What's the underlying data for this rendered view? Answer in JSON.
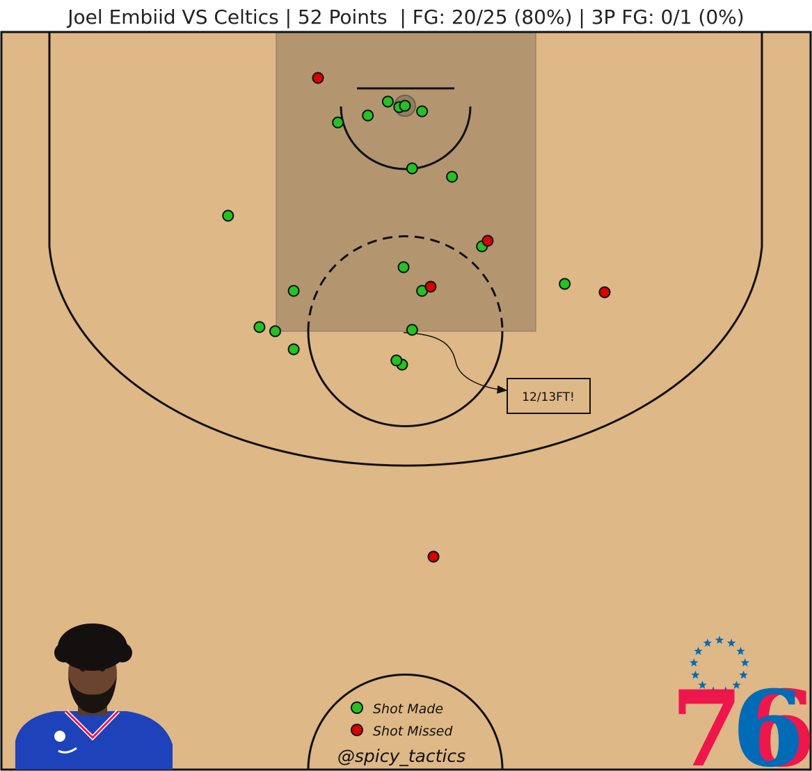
{
  "chart_data": {
    "type": "scatter",
    "title": "Joel Embiid VS Celtics | 52 Points  | FG: 20/25 (80%) | 3P FG: 0/1 (0%)",
    "x_range": [
      -250,
      250
    ],
    "y_range": [
      -47.5,
      422.5
    ],
    "legend": {
      "placement": "bottom-center",
      "made_label": "Shot Made",
      "missed_label": "Shot Missed"
    },
    "annotation": {
      "text": "12/13FT!"
    },
    "watermark": "@spicy_tactics",
    "colors": {
      "made": "#22c322",
      "missed": "#d90000",
      "court": "#deb887",
      "paint": "#b39670",
      "line": "#111111"
    },
    "points": [
      {
        "x": -4,
        "y": 1,
        "made": true
      },
      {
        "x": 0,
        "y": 0,
        "made": true
      },
      {
        "x": 12,
        "y": 4,
        "made": true
      },
      {
        "x": -12,
        "y": -3,
        "made": true
      },
      {
        "x": -26,
        "y": 7,
        "made": true
      },
      {
        "x": -47,
        "y": 12,
        "made": true
      },
      {
        "x": -61,
        "y": -20,
        "made": false
      },
      {
        "x": 5,
        "y": 45,
        "made": true
      },
      {
        "x": 33,
        "y": 51,
        "made": true
      },
      {
        "x": -124,
        "y": 79,
        "made": true
      },
      {
        "x": 54,
        "y": 101,
        "made": true
      },
      {
        "x": 58,
        "y": 97,
        "made": false
      },
      {
        "x": -1,
        "y": 116,
        "made": true
      },
      {
        "x": 112,
        "y": 128,
        "made": true
      },
      {
        "x": 140,
        "y": 134,
        "made": false
      },
      {
        "x": -78,
        "y": 133,
        "made": true
      },
      {
        "x": 12,
        "y": 133,
        "made": true
      },
      {
        "x": 18,
        "y": 130,
        "made": false
      },
      {
        "x": -102,
        "y": 159,
        "made": true
      },
      {
        "x": -91,
        "y": 162,
        "made": true
      },
      {
        "x": -78,
        "y": 175,
        "made": true
      },
      {
        "x": 5,
        "y": 161,
        "made": true
      },
      {
        "x": -2,
        "y": 186,
        "made": true
      },
      {
        "x": -6,
        "y": 183,
        "made": true
      },
      {
        "x": 20,
        "y": 324,
        "made": false
      }
    ]
  },
  "logos": {
    "player_photo_icon": "player-portrait-icon",
    "team_logo_icon": "sixers-76-logo",
    "team_logo_text": "76",
    "colors": {
      "red": "#ed174c",
      "blue": "#006bb6",
      "jersey": "#1d42ba"
    }
  }
}
